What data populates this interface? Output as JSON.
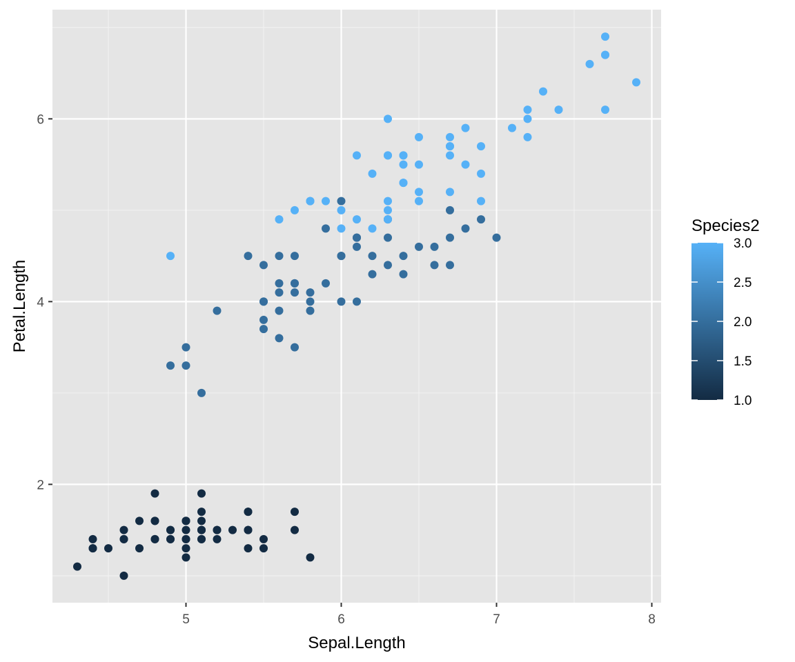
{
  "chart_data": {
    "type": "scatter",
    "title": "",
    "xlabel": "Sepal.Length",
    "ylabel": "Petal.Length",
    "xlim": [
      4.14,
      8.06
    ],
    "ylim": [
      0.705,
      7.195
    ],
    "x_ticks": [
      5,
      6,
      7,
      8
    ],
    "y_ticks": [
      2,
      4,
      6
    ],
    "x_tick_labels": [
      "5",
      "6",
      "7",
      "8"
    ],
    "y_tick_labels": [
      "2",
      "4",
      "6"
    ],
    "grid": true,
    "background": "#e5e5e5",
    "legend": {
      "title": "Species2",
      "type": "continuous-colorbar",
      "placement": "right",
      "range": [
        1.0,
        3.0
      ],
      "breaks": [
        1.0,
        1.5,
        2.0,
        2.5,
        3.0
      ],
      "labels": [
        "1.0",
        "1.5",
        "2.0",
        "2.5",
        "3.0"
      ],
      "low_color": "#132b43",
      "high_color": "#56b1f7"
    },
    "color_scale": {
      "low": "#132b43",
      "high": "#56b1f7"
    },
    "points": {
      "columns": [
        "Sepal.Length",
        "Petal.Length",
        "Species2"
      ],
      "rows": [
        [
          5.1,
          1.4,
          1
        ],
        [
          4.9,
          1.4,
          1
        ],
        [
          4.7,
          1.3,
          1
        ],
        [
          4.6,
          1.5,
          1
        ],
        [
          5.0,
          1.4,
          1
        ],
        [
          5.4,
          1.7,
          1
        ],
        [
          4.6,
          1.4,
          1
        ],
        [
          5.0,
          1.5,
          1
        ],
        [
          4.4,
          1.4,
          1
        ],
        [
          4.9,
          1.5,
          1
        ],
        [
          5.4,
          1.5,
          1
        ],
        [
          4.8,
          1.6,
          1
        ],
        [
          4.8,
          1.4,
          1
        ],
        [
          4.3,
          1.1,
          1
        ],
        [
          5.8,
          1.2,
          1
        ],
        [
          5.7,
          1.5,
          1
        ],
        [
          5.4,
          1.3,
          1
        ],
        [
          5.1,
          1.4,
          1
        ],
        [
          5.7,
          1.7,
          1
        ],
        [
          5.1,
          1.5,
          1
        ],
        [
          5.4,
          1.7,
          1
        ],
        [
          5.1,
          1.5,
          1
        ],
        [
          4.6,
          1.0,
          1
        ],
        [
          5.1,
          1.7,
          1
        ],
        [
          4.8,
          1.9,
          1
        ],
        [
          5.0,
          1.6,
          1
        ],
        [
          5.0,
          1.6,
          1
        ],
        [
          5.2,
          1.5,
          1
        ],
        [
          5.2,
          1.4,
          1
        ],
        [
          4.7,
          1.6,
          1
        ],
        [
          4.8,
          1.6,
          1
        ],
        [
          5.4,
          1.5,
          1
        ],
        [
          5.2,
          1.5,
          1
        ],
        [
          5.5,
          1.4,
          1
        ],
        [
          4.9,
          1.5,
          1
        ],
        [
          5.0,
          1.2,
          1
        ],
        [
          5.5,
          1.3,
          1
        ],
        [
          4.9,
          1.4,
          1
        ],
        [
          4.4,
          1.3,
          1
        ],
        [
          5.1,
          1.5,
          1
        ],
        [
          5.0,
          1.3,
          1
        ],
        [
          4.5,
          1.3,
          1
        ],
        [
          4.4,
          1.3,
          1
        ],
        [
          5.0,
          1.6,
          1
        ],
        [
          5.1,
          1.9,
          1
        ],
        [
          4.8,
          1.4,
          1
        ],
        [
          5.1,
          1.6,
          1
        ],
        [
          4.6,
          1.4,
          1
        ],
        [
          5.3,
          1.5,
          1
        ],
        [
          5.0,
          1.4,
          1
        ],
        [
          7.0,
          4.7,
          2
        ],
        [
          6.4,
          4.5,
          2
        ],
        [
          6.9,
          4.9,
          2
        ],
        [
          5.5,
          4.0,
          2
        ],
        [
          6.5,
          4.6,
          2
        ],
        [
          5.7,
          4.5,
          2
        ],
        [
          6.3,
          4.7,
          2
        ],
        [
          4.9,
          3.3,
          2
        ],
        [
          6.6,
          4.6,
          2
        ],
        [
          5.2,
          3.9,
          2
        ],
        [
          5.0,
          3.5,
          2
        ],
        [
          5.9,
          4.2,
          2
        ],
        [
          6.0,
          4.0,
          2
        ],
        [
          6.1,
          4.7,
          2
        ],
        [
          5.6,
          3.6,
          2
        ],
        [
          6.7,
          4.4,
          2
        ],
        [
          5.6,
          4.5,
          2
        ],
        [
          5.8,
          4.1,
          2
        ],
        [
          6.2,
          4.5,
          2
        ],
        [
          5.6,
          3.9,
          2
        ],
        [
          5.9,
          4.8,
          2
        ],
        [
          6.1,
          4.0,
          2
        ],
        [
          6.3,
          4.9,
          2
        ],
        [
          6.1,
          4.7,
          2
        ],
        [
          6.4,
          4.3,
          2
        ],
        [
          6.6,
          4.4,
          2
        ],
        [
          6.8,
          4.8,
          2
        ],
        [
          6.7,
          5.0,
          2
        ],
        [
          6.0,
          4.5,
          2
        ],
        [
          5.7,
          3.5,
          2
        ],
        [
          5.5,
          3.8,
          2
        ],
        [
          5.5,
          3.7,
          2
        ],
        [
          5.8,
          3.9,
          2
        ],
        [
          6.0,
          5.1,
          2
        ],
        [
          5.4,
          4.5,
          2
        ],
        [
          6.0,
          4.5,
          2
        ],
        [
          6.7,
          4.7,
          2
        ],
        [
          6.3,
          4.4,
          2
        ],
        [
          5.6,
          4.1,
          2
        ],
        [
          5.5,
          4.0,
          2
        ],
        [
          5.5,
          4.4,
          2
        ],
        [
          6.1,
          4.6,
          2
        ],
        [
          5.8,
          4.0,
          2
        ],
        [
          5.0,
          3.3,
          2
        ],
        [
          5.6,
          4.2,
          2
        ],
        [
          5.7,
          4.2,
          2
        ],
        [
          5.7,
          4.2,
          2
        ],
        [
          6.2,
          4.3,
          2
        ],
        [
          5.1,
          3.0,
          2
        ],
        [
          5.7,
          4.1,
          2
        ],
        [
          6.3,
          6.0,
          3
        ],
        [
          5.8,
          5.1,
          3
        ],
        [
          7.1,
          5.9,
          3
        ],
        [
          6.3,
          5.6,
          3
        ],
        [
          6.5,
          5.8,
          3
        ],
        [
          7.6,
          6.6,
          3
        ],
        [
          4.9,
          4.5,
          3
        ],
        [
          7.3,
          6.3,
          3
        ],
        [
          6.7,
          5.8,
          3
        ],
        [
          7.2,
          6.1,
          3
        ],
        [
          6.5,
          5.1,
          3
        ],
        [
          6.4,
          5.3,
          3
        ],
        [
          6.8,
          5.5,
          3
        ],
        [
          5.7,
          5.0,
          3
        ],
        [
          5.8,
          5.1,
          3
        ],
        [
          6.4,
          5.3,
          3
        ],
        [
          6.5,
          5.5,
          3
        ],
        [
          7.7,
          6.7,
          3
        ],
        [
          7.7,
          6.9,
          3
        ],
        [
          6.0,
          5.0,
          3
        ],
        [
          6.9,
          5.7,
          3
        ],
        [
          5.6,
          4.9,
          3
        ],
        [
          7.7,
          6.7,
          3
        ],
        [
          6.3,
          4.9,
          3
        ],
        [
          6.7,
          5.7,
          3
        ],
        [
          7.2,
          6.0,
          3
        ],
        [
          6.2,
          4.8,
          3
        ],
        [
          6.1,
          4.9,
          3
        ],
        [
          6.4,
          5.6,
          3
        ],
        [
          7.2,
          5.8,
          3
        ],
        [
          7.4,
          6.1,
          3
        ],
        [
          7.9,
          6.4,
          3
        ],
        [
          6.4,
          5.6,
          3
        ],
        [
          6.3,
          5.1,
          3
        ],
        [
          6.1,
          5.6,
          3
        ],
        [
          7.7,
          6.1,
          3
        ],
        [
          6.3,
          5.6,
          3
        ],
        [
          6.4,
          5.5,
          3
        ],
        [
          6.0,
          4.8,
          3
        ],
        [
          6.9,
          5.4,
          3
        ],
        [
          6.7,
          5.6,
          3
        ],
        [
          6.9,
          5.1,
          3
        ],
        [
          5.8,
          5.1,
          3
        ],
        [
          6.8,
          5.9,
          3
        ],
        [
          6.7,
          5.7,
          3
        ],
        [
          6.7,
          5.2,
          3
        ],
        [
          6.3,
          5.0,
          3
        ],
        [
          6.5,
          5.2,
          3
        ],
        [
          6.2,
          5.4,
          3
        ],
        [
          5.9,
          5.1,
          3
        ]
      ]
    }
  }
}
